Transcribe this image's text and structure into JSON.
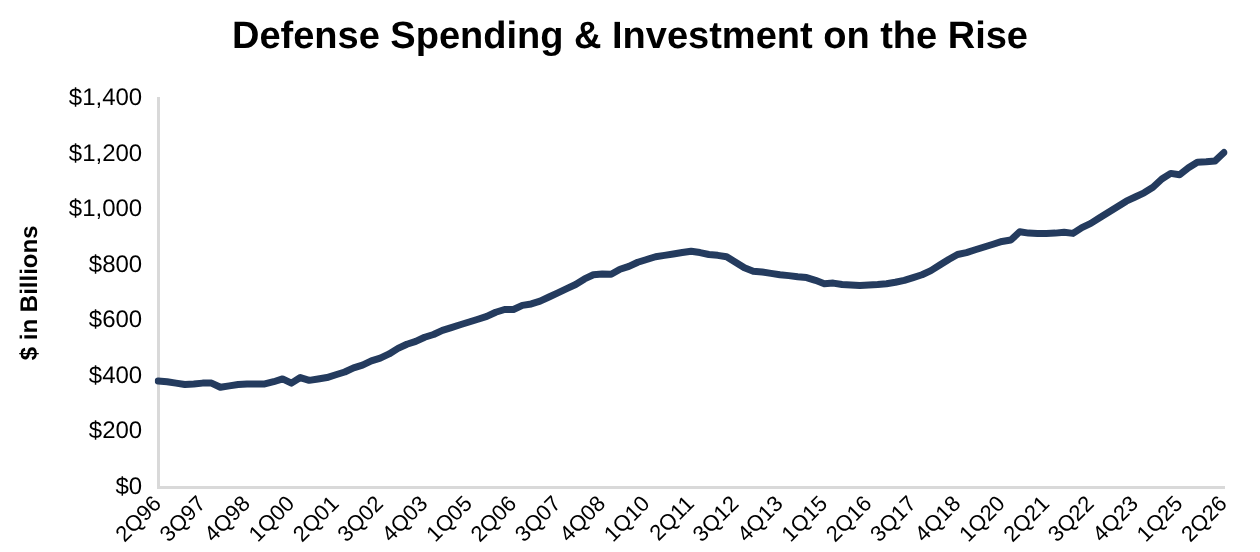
{
  "chart_data": {
    "type": "line",
    "title": "Defense Spending & Investment on the Rise",
    "ylabel": "$ in Billions",
    "categories": [
      "2Q96",
      null,
      null,
      null,
      null,
      "3Q97",
      null,
      null,
      null,
      null,
      "4Q98",
      null,
      null,
      null,
      null,
      "1Q00",
      null,
      null,
      null,
      null,
      "2Q01",
      null,
      null,
      null,
      null,
      "3Q02",
      null,
      null,
      null,
      null,
      "4Q03",
      null,
      null,
      null,
      null,
      "1Q05",
      null,
      null,
      null,
      null,
      "2Q06",
      null,
      null,
      null,
      null,
      "3Q07",
      null,
      null,
      null,
      null,
      "4Q08",
      null,
      null,
      null,
      null,
      "1Q10",
      null,
      null,
      null,
      null,
      "2Q11",
      null,
      null,
      null,
      null,
      "3Q12",
      null,
      null,
      null,
      null,
      "4Q13",
      null,
      null,
      null,
      null,
      "1Q15",
      null,
      null,
      null,
      null,
      "2Q16",
      null,
      null,
      null,
      null,
      "3Q17",
      null,
      null,
      null,
      null,
      "4Q18",
      null,
      null,
      null,
      null,
      "1Q20",
      null,
      null,
      null,
      null,
      "2Q21",
      null,
      null,
      null,
      null,
      "3Q22",
      null,
      null,
      null,
      null,
      "4Q23",
      null,
      null,
      null,
      null,
      "1Q25",
      null,
      null,
      null,
      null,
      "2Q26"
    ],
    "series": [
      {
        "color": "#243b5e",
        "values": [
          383,
          380,
          375,
          370,
          372,
          375,
          375,
          360,
          365,
          370,
          372,
          372,
          372,
          380,
          390,
          375,
          395,
          385,
          390,
          395,
          405,
          415,
          430,
          440,
          455,
          465,
          480,
          500,
          515,
          525,
          540,
          550,
          565,
          575,
          585,
          595,
          605,
          615,
          630,
          640,
          640,
          655,
          660,
          670,
          685,
          700,
          715,
          730,
          750,
          765,
          768,
          767,
          785,
          795,
          810,
          820,
          830,
          835,
          840,
          845,
          850,
          845,
          838,
          835,
          830,
          810,
          790,
          778,
          775,
          770,
          765,
          762,
          758,
          755,
          745,
          733,
          735,
          730,
          728,
          726,
          728,
          730,
          733,
          738,
          745,
          755,
          765,
          780,
          800,
          820,
          838,
          845,
          855,
          865,
          875,
          885,
          890,
          920,
          915,
          914,
          914,
          915,
          918,
          914,
          935,
          950,
          970,
          990,
          1010,
          1030,
          1045,
          1060,
          1080,
          1110,
          1130,
          1125,
          1150,
          1170,
          1172,
          1175,
          1205
        ]
      }
    ],
    "ylim": [
      0,
      1400
    ],
    "yticks": [
      {
        "value": 0,
        "label": "$0"
      },
      {
        "value": 200,
        "label": "$200"
      },
      {
        "value": 400,
        "label": "$400"
      },
      {
        "value": 600,
        "label": "$600"
      },
      {
        "value": 800,
        "label": "$800"
      },
      {
        "value": 1000,
        "label": "$1,000"
      },
      {
        "value": 1200,
        "label": "$1,200"
      },
      {
        "value": 1400,
        "label": "$1,400"
      }
    ],
    "grid": false,
    "legend": false,
    "marker": "none",
    "line_style": "solid"
  }
}
